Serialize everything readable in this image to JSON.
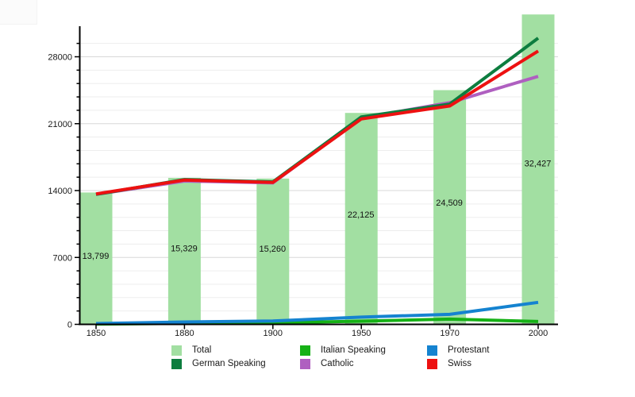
{
  "chart_data": {
    "type": "bar+line",
    "title": "",
    "categories": [
      "1850",
      "1880",
      "1900",
      "1950",
      "1970",
      "2000"
    ],
    "bars": {
      "name": "Total",
      "color": "#a2dfa2",
      "values": [
        13799,
        15329,
        15260,
        22125,
        24509,
        32427
      ],
      "labels": [
        "13,799",
        "15,329",
        "15,260",
        "22,125",
        "24,509",
        "32,427"
      ]
    },
    "series": [
      {
        "name": "Italian Speaking",
        "color": "#16b116",
        "values": [
          30,
          100,
          160,
          330,
          550,
          300
        ]
      },
      {
        "name": "Protestant",
        "color": "#1583d0",
        "values": [
          80,
          250,
          350,
          760,
          1050,
          2300
        ]
      },
      {
        "name": "Catholic",
        "color": "#af5fc0",
        "values": [
          13600,
          15000,
          14800,
          21600,
          23200,
          25950
        ]
      },
      {
        "name": "German Speaking",
        "color": "#0d7d3f",
        "values": [
          13600,
          15150,
          14900,
          21700,
          23050,
          29950
        ]
      },
      {
        "name": "Swiss",
        "color": "#ed1111",
        "values": [
          13650,
          15100,
          14850,
          21500,
          22850,
          28600
        ]
      }
    ],
    "y_axis": {
      "tick_values": [
        0,
        7000,
        14000,
        21000,
        28000
      ],
      "tick_labels": [
        "0",
        "7000",
        "14000",
        "21000",
        "28000"
      ],
      "minor_step": 1400,
      "grid_max": 29400,
      "range_shown": [
        0,
        31200
      ]
    },
    "x_axis": {
      "tick_labels": [
        "1850",
        "1880",
        "1900",
        "1950",
        "1970",
        "2000"
      ]
    },
    "grid": "on",
    "legend_position": "bottom"
  },
  "legend": {
    "items": [
      {
        "label": "Total",
        "color": "#a2dfa2"
      },
      {
        "label": "Italian Speaking",
        "color": "#16b116"
      },
      {
        "label": "Protestant",
        "color": "#1583d0"
      },
      {
        "label": "German Speaking",
        "color": "#0d7d3f"
      },
      {
        "label": "Catholic",
        "color": "#af5fc0"
      },
      {
        "label": "Swiss",
        "color": "#ed1111"
      }
    ]
  },
  "colors": {
    "axis": "#000000",
    "grid_minor": "#ededed",
    "grid_major": "#d8d8d8",
    "text": "#1a1a1a",
    "background": "#ffffff"
  }
}
